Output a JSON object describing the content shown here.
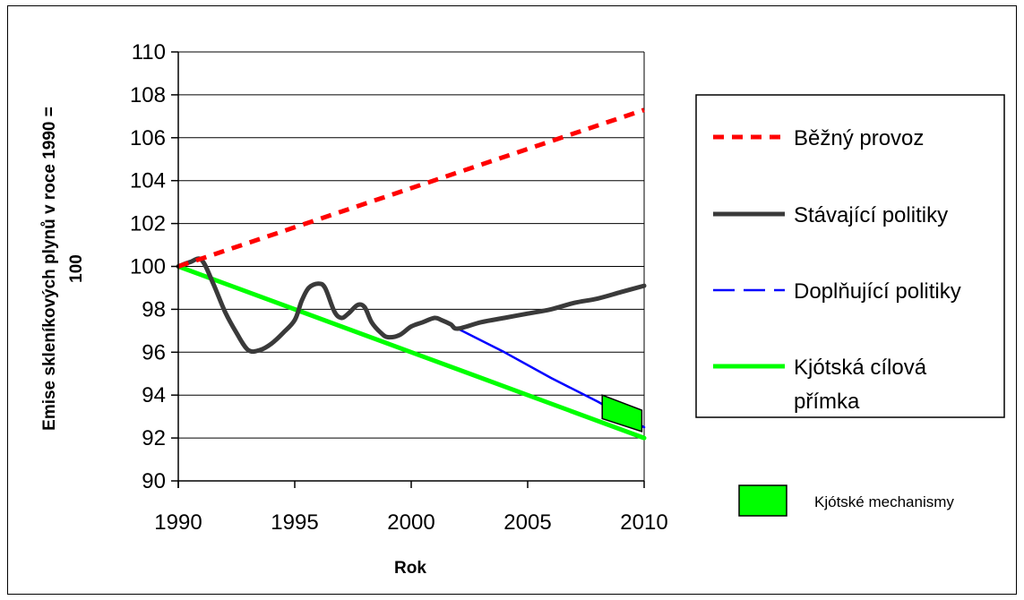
{
  "chart_data": {
    "type": "line",
    "xlabel": "Rok",
    "ylabel_line1": "Emise skleníkových plynů v roce 1990  =",
    "ylabel_line2": "100",
    "xlim": [
      1990,
      2010
    ],
    "ylim": [
      90,
      110
    ],
    "xticks": [
      1990,
      1995,
      2000,
      2005,
      2010
    ],
    "yticks": [
      90,
      92,
      94,
      96,
      98,
      100,
      102,
      104,
      106,
      108,
      110
    ],
    "grid": "horizontal",
    "legend_placement": "right",
    "series": [
      {
        "name": "Běžný provoz",
        "color": "#ff0000",
        "style": "dotted",
        "x": [
          1990,
          2010
        ],
        "y": [
          100,
          107.3
        ]
      },
      {
        "name": "Stávající politiky",
        "color": "#3a3a3a",
        "style": "solid",
        "x": [
          1990,
          1990.5,
          1991,
          1991.5,
          1992,
          1992.5,
          1993,
          1993.5,
          1994,
          1994.5,
          1995,
          1995.3,
          1995.6,
          1996,
          1996.3,
          1996.7,
          1997,
          1997.3,
          1997.7,
          1998,
          1998.3,
          1998.7,
          1999,
          1999.5,
          2000,
          2000.5,
          2001,
          2001.3,
          2001.7,
          2002,
          2003,
          2004,
          2005,
          2006,
          2007,
          2008,
          2009,
          2010
        ],
        "y": [
          100,
          100.2,
          100.3,
          99.2,
          97.9,
          96.9,
          96.1,
          96.1,
          96.4,
          96.9,
          97.5,
          98.4,
          99.0,
          99.2,
          99.0,
          97.9,
          97.6,
          97.8,
          98.2,
          98.1,
          97.4,
          96.9,
          96.7,
          96.8,
          97.2,
          97.4,
          97.6,
          97.5,
          97.3,
          97.1,
          97.4,
          97.6,
          97.8,
          98.0,
          98.3,
          98.5,
          98.8,
          99.1
        ]
      },
      {
        "name": "Doplňující politiky",
        "color": "#0000ff",
        "style": "dashed",
        "x": [
          2002,
          2004,
          2006,
          2008,
          2010
        ],
        "y": [
          97.1,
          96.0,
          94.8,
          93.7,
          92.5
        ]
      },
      {
        "name": "Kjótská cílová přímka",
        "name_line1": "Kjótská cílová",
        "name_line2": "přímka",
        "color": "#00ff00",
        "style": "solid",
        "x": [
          1990,
          1995,
          2000,
          2003,
          2005,
          2010
        ],
        "y": [
          100,
          98.0,
          96.0,
          94.8,
          94.0,
          92.0
        ]
      }
    ],
    "band": {
      "name": "Kjótské mechanismy",
      "color": "#00ff00",
      "corners": [
        [
          2008.2,
          94.0
        ],
        [
          2009.9,
          93.3
        ],
        [
          2009.9,
          92.3
        ],
        [
          2008.2,
          92.9
        ]
      ]
    }
  }
}
